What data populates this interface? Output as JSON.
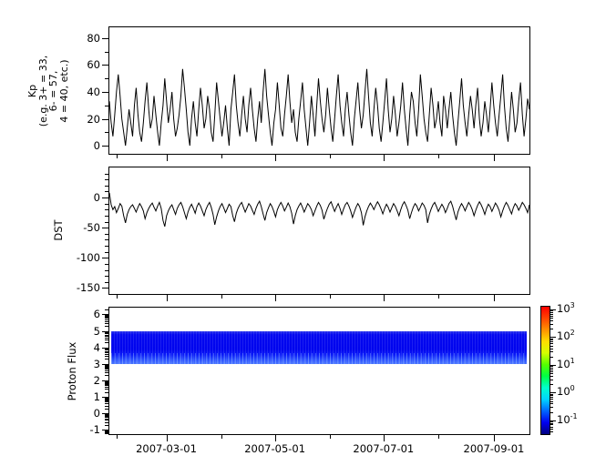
{
  "labels": {
    "kp_lines": [
      "Kp",
      "(e.g. 3+ = 33,",
      "6- = 57,",
      "4 = 40, etc.)"
    ],
    "dst": "DST",
    "proton": "Proton Flux"
  },
  "chart_data": {
    "type": "multi-panel-time-series",
    "title": "",
    "x_axis": {
      "start_date": "2007-01-28",
      "end_date": "2007-09-21",
      "span_days": 236,
      "ticks": [
        {
          "day": 4,
          "major": false
        },
        {
          "day": 32,
          "major": true,
          "label": "2007-03-01"
        },
        {
          "day": 63,
          "major": false
        },
        {
          "day": 93,
          "major": true,
          "label": "2007-05-01"
        },
        {
          "day": 124,
          "major": false
        },
        {
          "day": 154,
          "major": true,
          "label": "2007-07-01"
        },
        {
          "day": 185,
          "major": false
        },
        {
          "day": 216,
          "major": true,
          "label": "2007-09-01"
        }
      ]
    },
    "panels": [
      {
        "name": "kp",
        "type": "line",
        "ylabel": "Kp (e.g. 3+ = 33, 6- = 57, 4 = 40, etc.)",
        "ylim": [
          -6,
          88
        ],
        "yticks": [
          0,
          20,
          40,
          60,
          80
        ],
        "yticks_minor": [
          10,
          30,
          50,
          70
        ],
        "line_color": "#000000",
        "values": [
          33,
          17,
          7,
          23,
          40,
          53,
          37,
          20,
          10,
          0,
          13,
          27,
          17,
          7,
          30,
          43,
          23,
          10,
          3,
          17,
          33,
          47,
          27,
          13,
          20,
          37,
          23,
          10,
          0,
          17,
          30,
          50,
          33,
          17,
          27,
          40,
          20,
          7,
          13,
          23,
          37,
          57,
          43,
          27,
          10,
          0,
          20,
          33,
          17,
          7,
          27,
          43,
          30,
          13,
          20,
          37,
          27,
          10,
          3,
          23,
          47,
          33,
          20,
          7,
          17,
          30,
          13,
          0,
          27,
          40,
          53,
          30,
          17,
          7,
          23,
          37,
          20,
          10,
          30,
          43,
          27,
          13,
          3,
          20,
          33,
          17,
          40,
          57,
          37,
          23,
          10,
          0,
          17,
          27,
          47,
          30,
          13,
          7,
          23,
          37,
          53,
          33,
          17,
          27,
          10,
          3,
          20,
          33,
          47,
          27,
          13,
          0,
          17,
          37,
          23,
          7,
          30,
          50,
          33,
          20,
          10,
          23,
          43,
          27,
          13,
          3,
          20,
          37,
          53,
          30,
          17,
          7,
          27,
          40,
          23,
          10,
          0,
          20,
          33,
          47,
          27,
          13,
          23,
          40,
          57,
          37,
          17,
          7,
          27,
          43,
          30,
          13,
          3,
          17,
          33,
          50,
          27,
          10,
          20,
          37,
          23,
          7,
          17,
          30,
          47,
          27,
          13,
          0,
          23,
          40,
          33,
          17,
          7,
          27,
          53,
          37,
          20,
          10,
          3,
          23,
          43,
          30,
          13,
          20,
          33,
          17,
          7,
          37,
          27,
          13,
          27,
          40,
          23,
          10,
          0,
          17,
          33,
          50,
          30,
          17,
          7,
          23,
          37,
          27,
          13,
          30,
          43,
          20,
          7,
          17,
          33,
          23,
          10,
          27,
          47,
          30,
          17,
          7,
          23,
          37,
          53,
          30,
          13,
          3,
          20,
          40,
          27,
          10,
          17,
          33,
          47,
          23,
          7,
          20,
          35,
          27
        ]
      },
      {
        "name": "dst",
        "type": "line",
        "ylabel": "DST",
        "ylim": [
          -160,
          50
        ],
        "yticks": [
          0,
          -50,
          -100,
          -150
        ],
        "yticks_minor": [
          40,
          30,
          20,
          10,
          -10,
          -20,
          -30,
          -40,
          -60,
          -70,
          -80,
          -90,
          -110,
          -120,
          -130,
          -140
        ],
        "line_color": "#000000",
        "values": [
          8,
          -12,
          -20,
          -15,
          -25,
          -18,
          -10,
          -14,
          -30,
          -42,
          -28,
          -20,
          -15,
          -12,
          -18,
          -24,
          -16,
          -10,
          -15,
          -22,
          -35,
          -25,
          -18,
          -13,
          -9,
          -16,
          -22,
          -14,
          -8,
          -18,
          -38,
          -48,
          -30,
          -22,
          -16,
          -12,
          -20,
          -28,
          -18,
          -12,
          -8,
          -15,
          -25,
          -35,
          -24,
          -16,
          -11,
          -18,
          -26,
          -15,
          -9,
          -14,
          -22,
          -30,
          -20,
          -13,
          -8,
          -16,
          -28,
          -45,
          -32,
          -22,
          -15,
          -10,
          -17,
          -25,
          -18,
          -11,
          -15,
          -30,
          -40,
          -26,
          -18,
          -12,
          -8,
          -16,
          -24,
          -17,
          -10,
          -14,
          -21,
          -28,
          -18,
          -11,
          -6,
          -15,
          -27,
          -38,
          -25,
          -17,
          -10,
          -15,
          -23,
          -32,
          -20,
          -13,
          -8,
          -14,
          -22,
          -16,
          -9,
          -15,
          -26,
          -44,
          -30,
          -20,
          -14,
          -9,
          -16,
          -24,
          -17,
          -10,
          -14,
          -20,
          -30,
          -22,
          -14,
          -8,
          -13,
          -21,
          -36,
          -26,
          -18,
          -11,
          -7,
          -15,
          -23,
          -16,
          -10,
          -18,
          -28,
          -19,
          -12,
          -8,
          -14,
          -22,
          -33,
          -24,
          -16,
          -10,
          -15,
          -25,
          -46,
          -32,
          -22,
          -15,
          -9,
          -14,
          -20,
          -13,
          -7,
          -12,
          -19,
          -27,
          -18,
          -11,
          -16,
          -24,
          -17,
          -10,
          -15,
          -22,
          -30,
          -20,
          -12,
          -7,
          -13,
          -21,
          -35,
          -25,
          -16,
          -10,
          -14,
          -22,
          -16,
          -9,
          -13,
          -20,
          -42,
          -28,
          -19,
          -12,
          -8,
          -15,
          -23,
          -17,
          -11,
          -16,
          -25,
          -18,
          -10,
          -6,
          -14,
          -26,
          -37,
          -24,
          -16,
          -10,
          -15,
          -22,
          -15,
          -8,
          -13,
          -20,
          -30,
          -21,
          -13,
          -7,
          -12,
          -19,
          -28,
          -18,
          -11,
          -15,
          -23,
          -16,
          -9,
          -14,
          -21,
          -32,
          -22,
          -14,
          -8,
          -13,
          -20,
          -27,
          -17,
          -10,
          -14,
          -21,
          -15,
          -8,
          -12,
          -18,
          -25,
          -12
        ]
      },
      {
        "name": "proton_flux",
        "type": "heatmap",
        "ylabel": "Proton Flux",
        "ylim": [
          -1.26,
          6.41
        ],
        "yticks": [
          6,
          5,
          4,
          3,
          2,
          1,
          0,
          -1
        ],
        "log_minor_ticks": true,
        "band": {
          "y_from": 3,
          "y_to": 5,
          "value_range_approx": [
            0.05,
            0.5
          ],
          "gradient": [
            {
              "color": "#2a35ec",
              "pos": 0
            },
            {
              "color": "#0408f0",
              "pos": 10
            },
            {
              "color": "#0004ee",
              "pos": 55
            },
            {
              "color": "#0a1cf8",
              "pos": 72
            },
            {
              "color": "#2e55ff",
              "pos": 88
            },
            {
              "color": "#4a76ff",
              "pos": 100
            }
          ]
        }
      }
    ],
    "colorbar": {
      "scale": "log",
      "tick_base": "10",
      "ticks": [
        {
          "exp": "3"
        },
        {
          "exp": "2"
        },
        {
          "exp": "1"
        },
        {
          "exp": "0"
        },
        {
          "exp": "-1"
        }
      ],
      "exp_range": [
        -1.5,
        3.1
      ],
      "gradient_top_to_bottom": [
        "#ff0000",
        "#ff4400",
        "#ff9100",
        "#ffdd00",
        "#d4ff00",
        "#55ff00",
        "#00ff44",
        "#00ffcc",
        "#00d4ff",
        "#0066ff",
        "#0000f0",
        "#000080"
      ]
    }
  }
}
